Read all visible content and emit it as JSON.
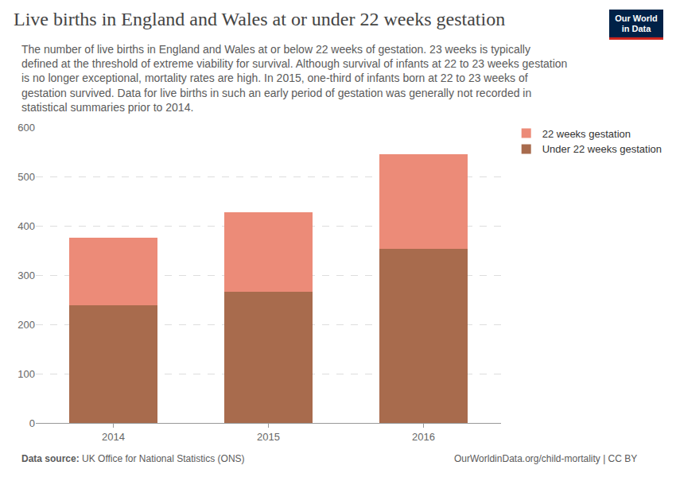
{
  "chart_data": {
    "type": "bar",
    "title": "Live births in England and Wales at or under 22 weeks gestation",
    "subtitle": [
      "The number of live births in England and Wales at or below 22 weeks of gestation. 23 weeks is typically",
      "defined at the threshold of extreme viability for survival. Although survival of infants at 22 to 23 weeks gestation",
      "is no longer exceptional, mortality rates are high. In 2015, one-third of infants born at 22 to 23 weeks of",
      "gestation survived. Data for live births in such an early period of gestation was generally not recorded in",
      "statistical summaries prior to 2014."
    ],
    "categories": [
      "2014",
      "2015",
      "2016"
    ],
    "series": [
      {
        "name": "Under 22 weeks gestation",
        "color": "#a86b4d",
        "values": [
          238,
          266,
          354
        ]
      },
      {
        "name": "22 weeks gestation",
        "color": "#ec8b78",
        "values": [
          138,
          161,
          191
        ]
      }
    ],
    "stacked": true,
    "ylim": [
      0,
      600
    ],
    "yticks": [
      0,
      100,
      200,
      300,
      400,
      500,
      600
    ],
    "grid": true,
    "legend": "right",
    "source_label": "Data source:",
    "source": "UK Office for National Statistics (ONS)",
    "credit": "OurWorldinData.org/child-mortality | CC BY",
    "logo": [
      "Our World",
      "in Data"
    ]
  }
}
